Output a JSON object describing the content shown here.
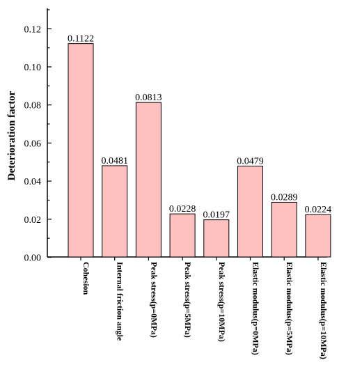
{
  "chart_data": {
    "type": "bar",
    "title": "",
    "xlabel": "",
    "ylabel": "Deterioration factor",
    "categories": [
      "Cohesion",
      "Internal friction angle",
      "Peak stress(p=0MPa)",
      "Peak stress(p=5MPa)",
      "Peak stress(p=10MPa)",
      "Elastic modulus(p=0MPa)",
      "Elastic modulus(p=5MPa)",
      "Elastic modulus(p=10MPa)"
    ],
    "values": [
      0.1122,
      0.0481,
      0.0813,
      0.0228,
      0.0197,
      0.0479,
      0.0289,
      0.0224
    ],
    "data_labels": [
      "0.1122",
      "0.0481",
      "0.0813",
      "0.0228",
      "0.0197",
      "0.0479",
      "0.0289",
      "0.0224"
    ],
    "ylim": [
      0,
      0.13
    ],
    "yticks": [
      0,
      0.02,
      0.04,
      0.06,
      0.08,
      0.1,
      0.12
    ],
    "ytick_labels": [
      "0.00",
      "0.02",
      "0.04",
      "0.06",
      "0.08",
      "0.10",
      "0.12"
    ],
    "grid": false,
    "legend": "none",
    "bar_color": "#ffc0c0",
    "edge_color": "#000000"
  }
}
